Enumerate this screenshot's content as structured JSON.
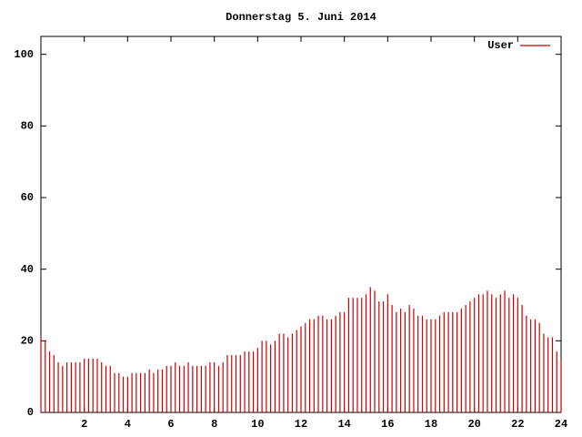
{
  "chart_data": {
    "type": "impulse",
    "title": "Donnerstag 5. Juni 2014",
    "x": [
      0,
      0.2,
      0.4,
      0.6,
      0.8,
      1,
      1.2,
      1.4,
      1.6,
      1.8,
      2,
      2.2,
      2.4,
      2.6,
      2.8,
      3,
      3.2,
      3.4,
      3.6,
      3.8,
      4,
      4.2,
      4.4,
      4.6,
      4.8,
      5,
      5.2,
      5.4,
      5.6,
      5.8,
      6,
      6.2,
      6.4,
      6.6,
      6.8,
      7,
      7.2,
      7.4,
      7.6,
      7.8,
      8,
      8.2,
      8.4,
      8.6,
      8.8,
      9,
      9.2,
      9.4,
      9.6,
      9.8,
      10,
      10.2,
      10.4,
      10.6,
      10.8,
      11,
      11.2,
      11.4,
      11.6,
      11.8,
      12,
      12.2,
      12.4,
      12.6,
      12.8,
      13,
      13.2,
      13.4,
      13.6,
      13.8,
      14,
      14.2,
      14.4,
      14.6,
      14.8,
      15,
      15.2,
      15.4,
      15.6,
      15.8,
      16,
      16.2,
      16.4,
      16.6,
      16.8,
      17,
      17.2,
      17.4,
      17.6,
      17.8,
      18,
      18.2,
      18.4,
      18.6,
      18.8,
      19,
      19.2,
      19.4,
      19.6,
      19.8,
      20,
      20.2,
      20.4,
      20.6,
      20.8,
      21,
      21.2,
      21.4,
      21.6,
      21.8,
      22,
      22.2,
      22.4,
      22.6,
      22.8,
      23,
      23.2,
      23.4,
      23.6,
      23.8,
      24
    ],
    "series": [
      {
        "name": "User",
        "color": "#cc0000",
        "values": [
          21,
          20,
          17,
          16,
          14,
          13,
          14,
          14,
          14,
          14,
          15,
          15,
          15,
          15,
          14,
          13,
          13,
          11,
          11,
          10,
          10,
          11,
          11,
          11,
          11,
          12,
          11,
          12,
          12,
          13,
          13,
          14,
          13,
          13,
          14,
          13,
          13,
          13,
          13,
          14,
          14,
          13,
          14,
          16,
          16,
          16,
          16,
          17,
          17,
          17,
          18,
          20,
          20,
          19,
          20,
          22,
          22,
          21,
          22,
          23,
          24,
          25,
          26,
          26,
          27,
          27,
          26,
          26,
          27,
          28,
          28,
          32,
          32,
          32,
          32,
          33,
          35,
          34,
          31,
          31,
          33,
          30,
          28,
          29,
          28,
          30,
          29,
          27,
          27,
          26,
          26,
          26,
          27,
          28,
          28,
          28,
          28,
          29,
          30,
          31,
          32,
          33,
          33,
          34,
          33,
          32,
          33,
          34,
          32,
          33,
          32,
          30,
          27,
          26,
          26,
          25,
          22,
          21,
          21,
          17,
          14
        ]
      }
    ],
    "xlim": [
      0,
      24
    ],
    "ylim": [
      0,
      105
    ],
    "xticks": [
      2,
      4,
      6,
      8,
      10,
      12,
      14,
      16,
      18,
      20,
      22,
      24
    ],
    "yticks": [
      0,
      20,
      40,
      60,
      80,
      100
    ],
    "legend": "top-right"
  }
}
